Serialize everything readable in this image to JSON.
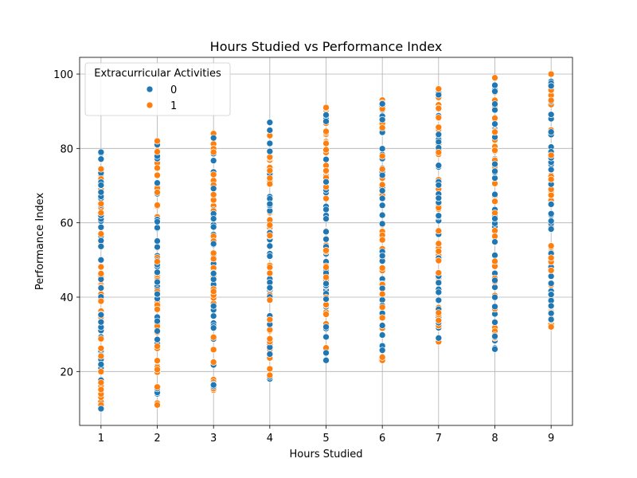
{
  "chart_data": {
    "type": "scatter",
    "title": "Hours Studied vs Performance Index",
    "xlabel": "Hours Studied",
    "ylabel": "Performance Index",
    "xlim": [
      0.62,
      9.38
    ],
    "ylim": [
      5.5,
      104.5
    ],
    "xticks": [
      1,
      2,
      3,
      4,
      5,
      6,
      7,
      8,
      9
    ],
    "yticks": [
      20,
      40,
      60,
      80,
      100
    ],
    "grid": true,
    "legend": {
      "title": "Extracurricular Activities",
      "position": "upper-left"
    },
    "series": [
      {
        "name": "0",
        "color": "#1f77b4",
        "points_by_x": [
          {
            "x": 1,
            "y_min": 10,
            "y_max": 79
          },
          {
            "x": 2,
            "y_min": 14,
            "y_max": 81
          },
          {
            "x": 3,
            "y_min": 16,
            "y_max": 83
          },
          {
            "x": 4,
            "y_min": 18,
            "y_max": 87
          },
          {
            "x": 5,
            "y_min": 23,
            "y_max": 89
          },
          {
            "x": 6,
            "y_min": 24,
            "y_max": 92
          },
          {
            "x": 7,
            "y_min": 29,
            "y_max": 95
          },
          {
            "x": 8,
            "y_min": 26,
            "y_max": 97
          },
          {
            "x": 9,
            "y_min": 34,
            "y_max": 98
          }
        ]
      },
      {
        "name": "1",
        "color": "#ff7f0e",
        "points_by_x": [
          {
            "x": 1,
            "y_min": 11,
            "y_max": 77
          },
          {
            "x": 2,
            "y_min": 11,
            "y_max": 82
          },
          {
            "x": 3,
            "y_min": 15,
            "y_max": 84
          },
          {
            "x": 4,
            "y_min": 19,
            "y_max": 85
          },
          {
            "x": 5,
            "y_min": 25,
            "y_max": 91
          },
          {
            "x": 6,
            "y_min": 23,
            "y_max": 93
          },
          {
            "x": 7,
            "y_min": 28,
            "y_max": 96
          },
          {
            "x": 8,
            "y_min": 29,
            "y_max": 99
          },
          {
            "x": 9,
            "y_min": 32,
            "y_max": 100
          }
        ]
      }
    ]
  }
}
